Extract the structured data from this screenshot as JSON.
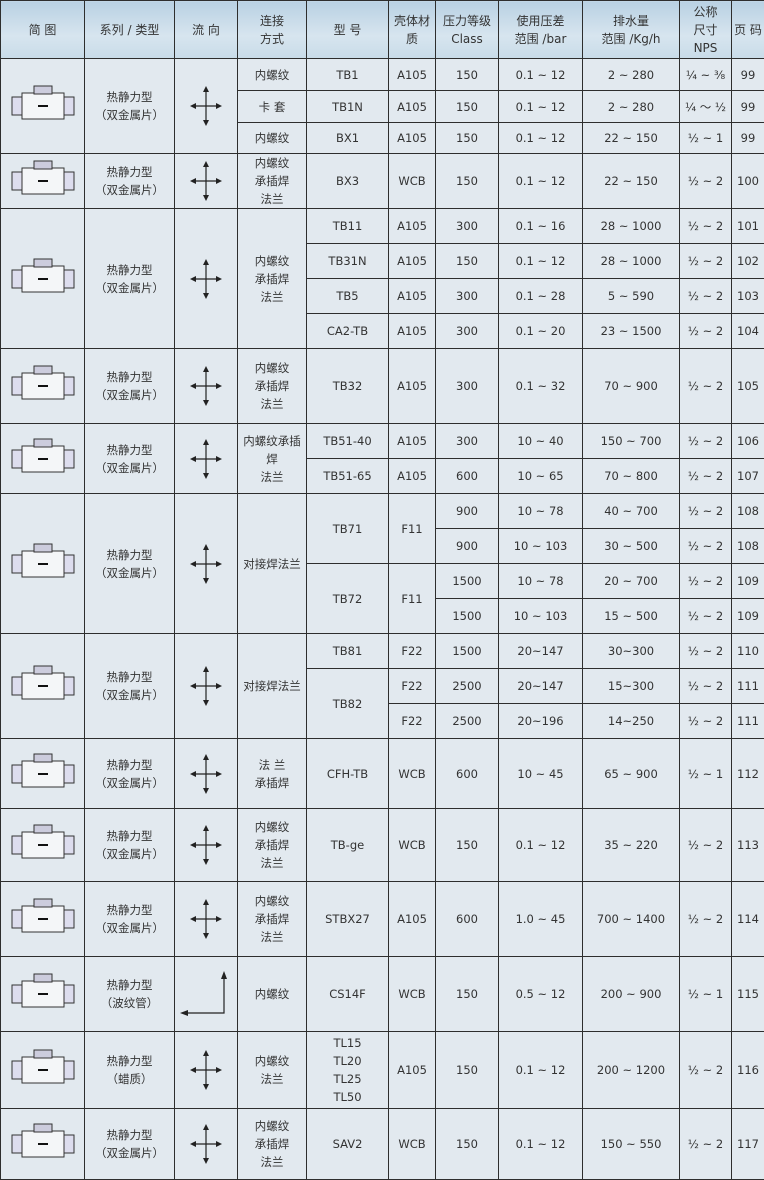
{
  "headers": [
    "简 图",
    "系列 / 类型",
    "流 向",
    "连接\n方式",
    "型 号",
    "壳体材\n质",
    "压力等级\nClass",
    "使用压差\n范围 /bar",
    "排水量\n范围 /Kg/h",
    "公称\n尺寸\nNPS",
    "页 码"
  ],
  "colors": {
    "header": "#c8dbe8",
    "body": "#e2e9ef",
    "border": "#2e2e2e"
  },
  "groups": [
    {
      "image": "tb1-trap-icon",
      "series": "热静力型\n（双金属片）",
      "flow": "cross-arrow-icon",
      "rows": [
        [
          "内螺纹",
          "TB1",
          "A105",
          "150",
          "0.1 ~ 12",
          "2 ~ 280",
          "¼ ~ ⅜",
          "99"
        ],
        [
          "卡 套",
          "TB1N",
          "A105",
          "150",
          "0.1 ~ 12",
          "2 ~ 280",
          "¼ ～ ½",
          "99"
        ],
        [
          "内螺纹",
          "BX1",
          "A105",
          "150",
          "0.1 ~ 12",
          "22 ~ 150",
          "½ ~ 1",
          "99"
        ]
      ]
    },
    {
      "image": "bx3-trap-icon",
      "series": "热静力型\n（双金属片）",
      "flow": "cross-arrow-icon",
      "rows": [
        [
          "内螺纹\n承插焊\n法兰",
          "BX3",
          "WCB",
          "150",
          "0.1 ~ 12",
          "22 ~ 150",
          "½ ~ 2",
          "100"
        ]
      ]
    },
    {
      "image": "tb11-trap-icon",
      "series": "热静力型\n（双金属片）",
      "flow": "cross-arrow-icon",
      "rows": [
        [
          "内螺纹\n承插焊\n法兰",
          "TB11",
          "A105",
          "300",
          "0.1 ~ 16",
          "28 ~ 1000",
          "½ ~ 2",
          "101"
        ],
        [
          null,
          "TB31N",
          "A105",
          "150",
          "0.1 ~ 12",
          "28 ~ 1000",
          "½ ~ 2",
          "102"
        ],
        [
          null,
          "TB5",
          "A105",
          "300",
          "0.1 ~ 28",
          "5 ~ 590",
          "½ ~ 2",
          "103"
        ],
        [
          null,
          "CA2-TB",
          "A105",
          "300",
          "0.1 ~ 20",
          "23 ~ 1500",
          "½ ~ 2",
          "104"
        ]
      ]
    },
    {
      "image": "tb32-trap-icon",
      "series": "热静力型\n（双金属片）",
      "flow": "cross-arrow-icon",
      "rows": [
        [
          "内螺纹\n承插焊\n法兰",
          "TB32",
          "A105",
          "300",
          "0.1 ~ 32",
          "70 ~ 900",
          "½ ~ 2",
          "105"
        ]
      ]
    },
    {
      "image": "tb51-trap-icon",
      "series": "热静力型\n（双金属片）",
      "flow": "cross-arrow-icon",
      "rows": [
        [
          "内螺纹承插\n焊\n法兰",
          "TB51-40",
          "A105",
          "300",
          "10 ~ 40",
          "150 ~ 700",
          "½ ~ 2",
          "106"
        ],
        [
          null,
          "TB51-65",
          "A105",
          "600",
          "10 ~ 65",
          "70 ~ 800",
          "½ ~ 2",
          "107"
        ]
      ]
    },
    {
      "image": "tb71-trap-icon",
      "series": "热静力型\n（双金属片）",
      "flow": "cross-arrow-icon",
      "rows": [
        [
          "对接焊法兰",
          "TB71",
          "F11",
          "900",
          "10 ~ 78",
          "40 ~ 700",
          "½ ~ 2",
          "108"
        ],
        [
          null,
          null,
          null,
          "900",
          "10 ~ 103",
          "30 ~ 500",
          "½ ~ 2",
          "108"
        ],
        [
          null,
          "TB72",
          "F11",
          "1500",
          "10 ~ 78",
          "20 ~ 700",
          "½ ~ 2",
          "109"
        ],
        [
          null,
          null,
          null,
          "1500",
          "10 ~ 103",
          "15 ~ 500",
          "½ ~ 2",
          "109"
        ]
      ]
    },
    {
      "image": "tb81-trap-icon",
      "series": "热静力型\n（双金属片）",
      "flow": "cross-arrow-icon",
      "rows": [
        [
          "对接焊法兰",
          "TB81",
          "F22",
          "1500",
          "20~147",
          "30~300",
          "½ ~ 2",
          "110"
        ],
        [
          null,
          "TB82",
          "F22",
          "2500",
          "20~147",
          "15~300",
          "½ ~ 2",
          "111"
        ],
        [
          null,
          null,
          "F22",
          "2500",
          "20~196",
          "14~250",
          "½ ~ 2",
          "111"
        ]
      ]
    },
    {
      "image": "cfh-tb-trap-icon",
      "series": "热静力型\n（双金属片）",
      "flow": "cross-arrow-icon",
      "rows": [
        [
          "法 兰\n承插焊",
          "CFH-TB",
          "WCB",
          "600",
          "10 ~ 45",
          "65 ~ 900",
          "½ ~ 1",
          "112"
        ]
      ]
    },
    {
      "image": "tb-ge-trap-icon",
      "series": "热静力型\n（双金属片）",
      "flow": "cross-arrow-icon",
      "rows": [
        [
          "内螺纹\n承插焊\n法兰",
          "TB-ge",
          "WCB",
          "150",
          "0.1 ~ 12",
          "35 ~ 220",
          "½ ~ 2",
          "113"
        ]
      ]
    },
    {
      "image": "stbx27-trap-icon",
      "series": "热静力型\n（双金属片）",
      "flow": "cross-arrow-icon",
      "rows": [
        [
          "内螺纹\n承插焊\n法兰",
          "STBX27",
          "A105",
          "600",
          "1.0 ~ 45",
          "700 ~ 1400",
          "½ ~ 2",
          "114"
        ]
      ]
    },
    {
      "image": "cs14f-trap-icon",
      "series": "热静力型\n（波纹管）",
      "flow": "angle-arrow-icon",
      "rows": [
        [
          "内螺纹",
          "CS14F",
          "WCB",
          "150",
          "0.5 ~ 12",
          "200 ~ 900",
          "½ ~ 1",
          "115"
        ]
      ]
    },
    {
      "image": "tl-trap-icon",
      "series": "热静力型\n（蜡质）",
      "flow": "cross-arrow-icon",
      "rows": [
        [
          "内螺纹\n法兰",
          "TL15\nTL20\nTL25\nTL50",
          "A105",
          "150",
          "0.1 ~ 12",
          "200 ~ 1200",
          "½ ~ 2",
          "116"
        ]
      ]
    },
    {
      "image": "sav2-trap-icon",
      "series": "热静力型\n（双金属片）",
      "flow": "cross-arrow-icon",
      "rows": [
        [
          "内螺纹\n承插焊\n法兰",
          "SAV2",
          "WCB",
          "150",
          "0.1 ~ 12",
          "150 ~ 550",
          "½ ~ 2",
          "117"
        ]
      ]
    }
  ]
}
